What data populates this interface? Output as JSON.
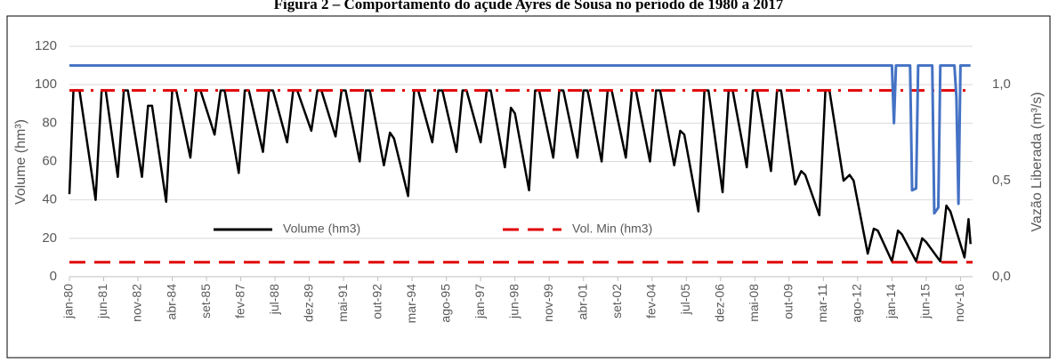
{
  "chart_data": {
    "type": "line",
    "title": "Figura 2 – Comportamento do açude Ayres de Sousa no período de 1980 a 2017",
    "ylabel": "Volume (hm³)",
    "y2label": "Vazão Liberada (m³/s)",
    "xlim": [
      0,
      448
    ],
    "xticks": [
      {
        "value": 0,
        "label": "jan-80"
      },
      {
        "value": 17,
        "label": "jun-81"
      },
      {
        "value": 34,
        "label": "nov-82"
      },
      {
        "value": 51,
        "label": "abr-84"
      },
      {
        "value": 68,
        "label": "set-85"
      },
      {
        "value": 85,
        "label": "fev-87"
      },
      {
        "value": 102,
        "label": "jul-88"
      },
      {
        "value": 119,
        "label": "dez-89"
      },
      {
        "value": 136,
        "label": "mai-91"
      },
      {
        "value": 153,
        "label": "out-92"
      },
      {
        "value": 170,
        "label": "mar-94"
      },
      {
        "value": 187,
        "label": "ago-95"
      },
      {
        "value": 204,
        "label": "jan-97"
      },
      {
        "value": 221,
        "label": "jun-98"
      },
      {
        "value": 238,
        "label": "nov-99"
      },
      {
        "value": 255,
        "label": "abr-01"
      },
      {
        "value": 272,
        "label": "set-02"
      },
      {
        "value": 289,
        "label": "fev-04"
      },
      {
        "value": 306,
        "label": "jul-05"
      },
      {
        "value": 323,
        "label": "dez-06"
      },
      {
        "value": 340,
        "label": "mai-08"
      },
      {
        "value": 357,
        "label": "out-09"
      },
      {
        "value": 374,
        "label": "mar-11"
      },
      {
        "value": 391,
        "label": "ago-12"
      },
      {
        "value": 408,
        "label": "jan-14"
      },
      {
        "value": 425,
        "label": "jun-15"
      },
      {
        "value": 442,
        "label": "nov-16"
      }
    ],
    "ylim": [
      0,
      120
    ],
    "yticks": [
      0,
      20,
      40,
      60,
      80,
      100,
      120
    ],
    "y2lim": [
      0,
      1.2
    ],
    "y2ticks": [
      {
        "value": 0,
        "label": "0,0"
      },
      {
        "value": 0.5,
        "label": "0,5"
      },
      {
        "value": 1,
        "label": "1,0"
      }
    ],
    "grid": true,
    "series": [
      {
        "name": "Volume (hm3)",
        "color": "#000000",
        "x": [
          0,
          2,
          5,
          13,
          16,
          18,
          24,
          27,
          29,
          36,
          39,
          41,
          48,
          51,
          53,
          60,
          63,
          65,
          72,
          75,
          77,
          84,
          87,
          89,
          96,
          99,
          101,
          108,
          111,
          113,
          120,
          123,
          125,
          132,
          135,
          137,
          144,
          147,
          149,
          156,
          159,
          161,
          168,
          171,
          173,
          180,
          183,
          185,
          192,
          195,
          197,
          204,
          207,
          209,
          216,
          219,
          221,
          228,
          231,
          233,
          240,
          243,
          245,
          252,
          255,
          257,
          264,
          267,
          269,
          276,
          279,
          281,
          288,
          291,
          293,
          300,
          303,
          305,
          312,
          315,
          317,
          324,
          327,
          329,
          336,
          339,
          341,
          348,
          351,
          353,
          360,
          363,
          365,
          372,
          375,
          377,
          384,
          387,
          389,
          396,
          399,
          401,
          408,
          411,
          413,
          420,
          423,
          425,
          432,
          435,
          437,
          444,
          446,
          447
        ],
        "values": [
          43,
          97,
          97,
          40,
          97,
          97,
          52,
          97,
          97,
          52,
          89,
          89,
          39,
          97,
          97,
          62,
          97,
          97,
          74,
          97,
          97,
          54,
          97,
          97,
          65,
          97,
          97,
          70,
          97,
          97,
          76,
          97,
          97,
          73,
          97,
          97,
          60,
          97,
          97,
          58,
          75,
          72,
          42,
          97,
          97,
          70,
          97,
          97,
          65,
          97,
          97,
          70,
          97,
          97,
          57,
          88,
          85,
          45,
          97,
          97,
          62,
          97,
          97,
          62,
          97,
          97,
          60,
          97,
          97,
          62,
          97,
          97,
          60,
          97,
          97,
          58,
          76,
          74,
          34,
          97,
          97,
          44,
          97,
          97,
          57,
          97,
          97,
          55,
          97,
          97,
          48,
          55,
          53,
          32,
          97,
          97,
          50,
          53,
          50,
          12,
          25,
          24,
          8,
          24,
          22,
          8,
          20,
          18,
          8,
          37,
          34,
          10,
          30,
          17
        ]
      },
      {
        "name": "Vol. Min (hm3)",
        "color": "#e00000",
        "dash": "dashed",
        "x": [
          0,
          448
        ],
        "values": [
          7.5,
          7.5
        ]
      },
      {
        "color": "#e00000",
        "dash": "dashdot",
        "x": [
          0,
          448
        ],
        "values": [
          97,
          97
        ]
      },
      {
        "color": "#4472c4",
        "axis": "y2",
        "x": [
          0,
          408,
          409,
          410,
          417,
          418,
          420,
          421,
          428,
          429,
          431,
          432,
          439,
          440,
          441,
          442,
          447
        ],
        "values": [
          1.1,
          1.1,
          0.8,
          1.1,
          1.1,
          0.45,
          0.46,
          1.1,
          1.1,
          0.33,
          0.36,
          1.1,
          1.1,
          0.93,
          0.38,
          1.1,
          1.1
        ]
      }
    ]
  }
}
